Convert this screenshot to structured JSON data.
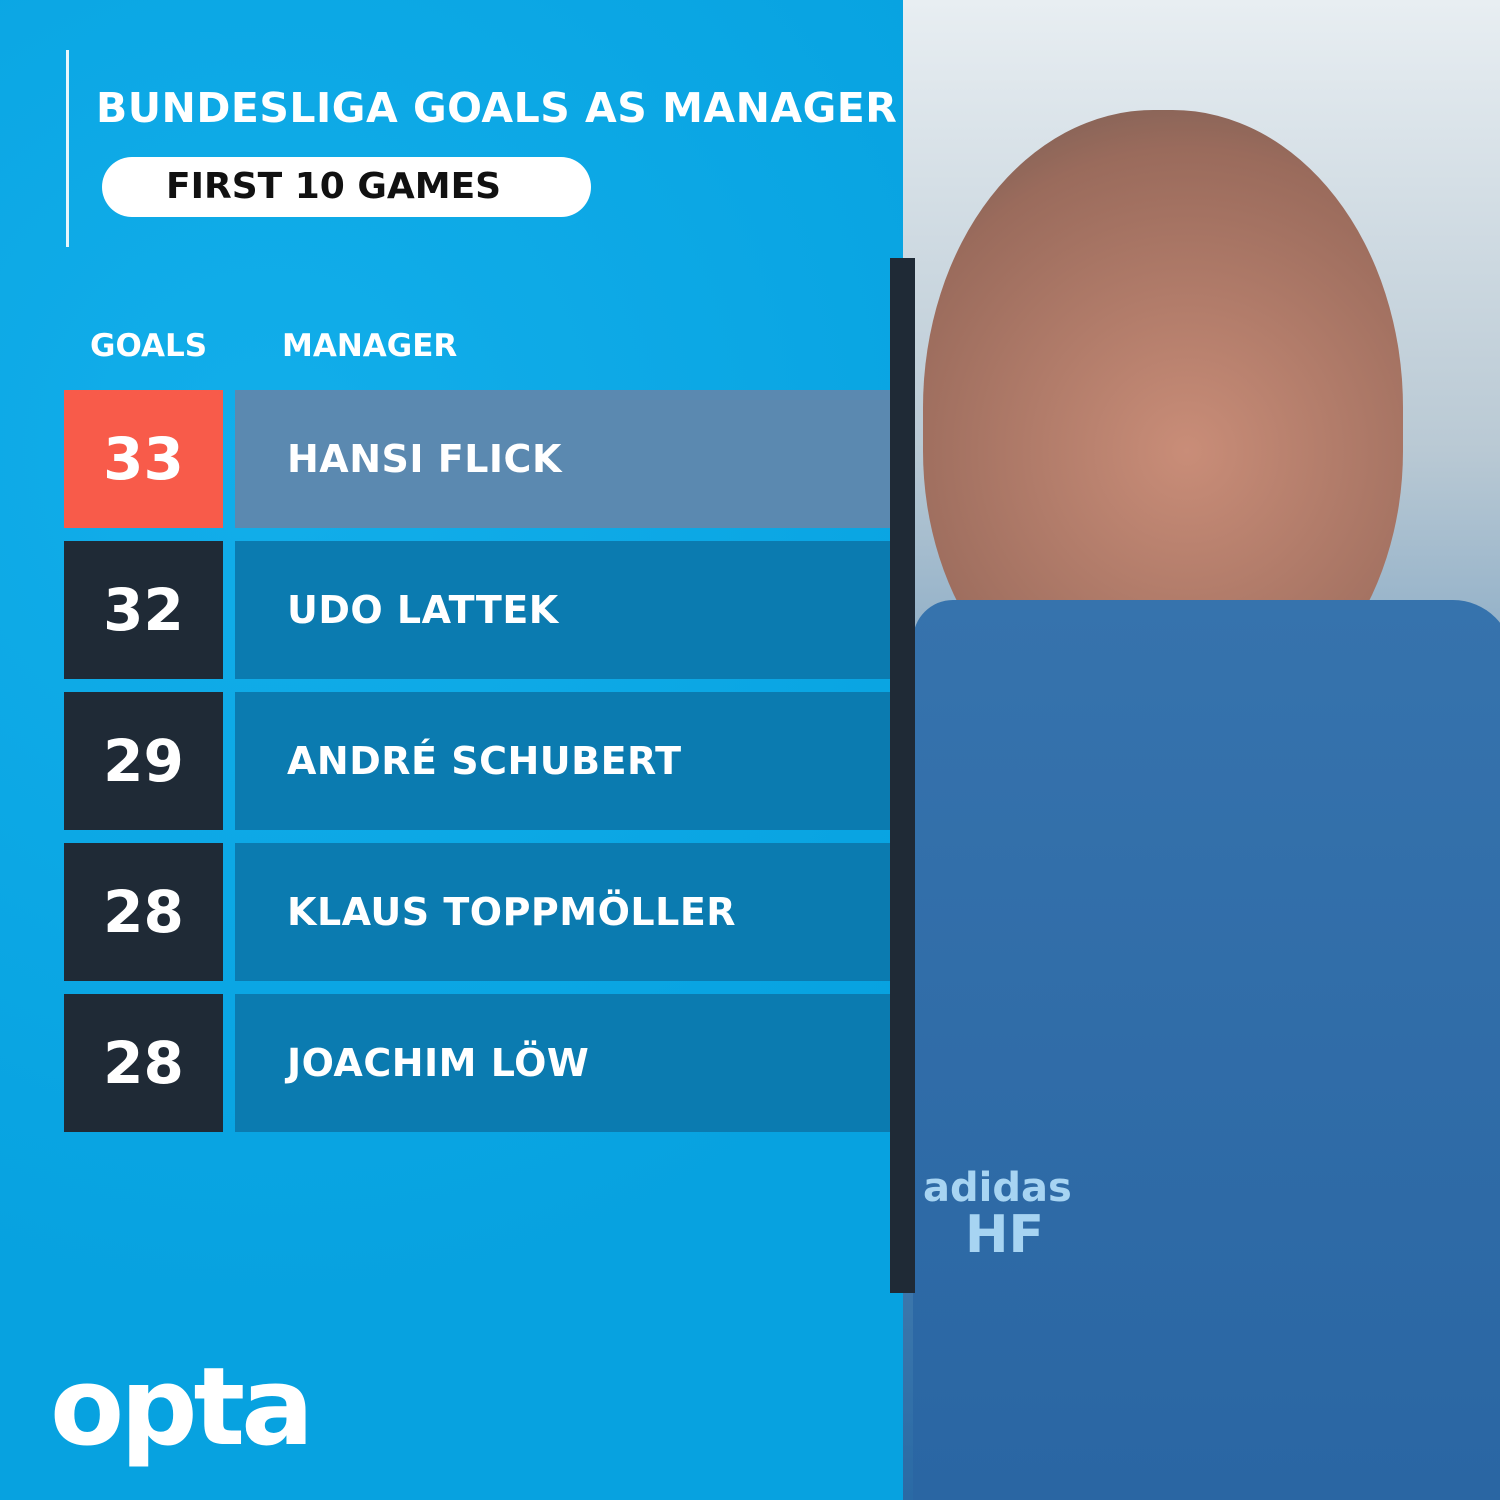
{
  "header": {
    "title": "BUNDESLIGA GOALS AS MANAGER",
    "subtitle": "FIRST 10 GAMES"
  },
  "columns": {
    "goals": "GOALS",
    "manager": "MANAGER"
  },
  "chart_data": {
    "type": "table",
    "title": "BUNDESLIGA GOALS AS MANAGER",
    "subtitle": "FIRST 10 GAMES",
    "columns": [
      "GOALS",
      "MANAGER"
    ],
    "rows": [
      {
        "goals": "33",
        "manager": "HANSI FLICK",
        "highlight": true
      },
      {
        "goals": "32",
        "manager": "UDO LATTEK",
        "highlight": false
      },
      {
        "goals": "29",
        "manager": "ANDRÉ SCHUBERT",
        "highlight": false
      },
      {
        "goals": "28",
        "manager": "KLAUS TOPPMÖLLER",
        "highlight": false
      },
      {
        "goals": "28",
        "manager": "JOACHIM LÖW",
        "highlight": false
      }
    ]
  },
  "colors": {
    "background": "#0aa8e6",
    "highlight_goals": "#f85b4a",
    "highlight_name": "#5b89b0",
    "goals": "#1f2a36",
    "name": "#0b7bb0"
  },
  "logo": "opta",
  "photo": {
    "jacket_text": [
      "adidas",
      "HF"
    ]
  }
}
